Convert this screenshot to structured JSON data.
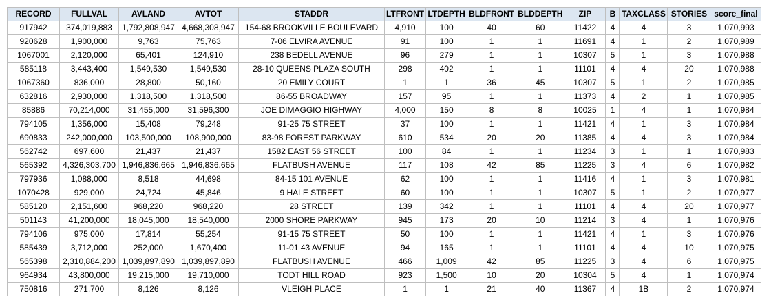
{
  "table": {
    "columns": [
      "RECORD",
      "FULLVAL",
      "AVLAND",
      "AVTOT",
      "STADDR",
      "LTFRONT",
      "LTDEPTH",
      "BLDFRONT",
      "BLDDEPTH",
      "ZIP",
      "B",
      "TAXCLASS",
      "STORIES",
      "score_final"
    ],
    "rows": [
      [
        "917942",
        "374,019,883",
        "1,792,808,947",
        "4,668,308,947",
        "154-68 BROOKVILLE BOULEVARD",
        "4,910",
        "100",
        "40",
        "60",
        "11422",
        "4",
        "4",
        "3",
        "1,070,993"
      ],
      [
        "920628",
        "1,900,000",
        "9,763",
        "75,763",
        "7-06 ELVIRA AVENUE",
        "91",
        "100",
        "1",
        "1",
        "11691",
        "4",
        "1",
        "2",
        "1,070,989"
      ],
      [
        "1067001",
        "2,120,000",
        "65,401",
        "124,910",
        "238 BEDELL AVENUE",
        "96",
        "279",
        "1",
        "1",
        "10307",
        "5",
        "1",
        "3",
        "1,070,988"
      ],
      [
        "585118",
        "3,443,400",
        "1,549,530",
        "1,549,530",
        "28-10 QUEENS PLAZA SOUTH",
        "298",
        "402",
        "1",
        "1",
        "11101",
        "4",
        "4",
        "20",
        "1,070,988"
      ],
      [
        "1067360",
        "836,000",
        "28,800",
        "50,160",
        "20 EMILY COURT",
        "1",
        "1",
        "36",
        "45",
        "10307",
        "5",
        "1",
        "2",
        "1,070,985"
      ],
      [
        "632816",
        "2,930,000",
        "1,318,500",
        "1,318,500",
        "86-55 BROADWAY",
        "157",
        "95",
        "1",
        "1",
        "11373",
        "4",
        "2",
        "1",
        "1,070,985"
      ],
      [
        "85886",
        "70,214,000",
        "31,455,000",
        "31,596,300",
        "JOE DIMAGGIO HIGHWAY",
        "4,000",
        "150",
        "8",
        "8",
        "10025",
        "1",
        "4",
        "1",
        "1,070,984"
      ],
      [
        "794105",
        "1,356,000",
        "15,408",
        "79,248",
        "91-25 75 STREET",
        "37",
        "100",
        "1",
        "1",
        "11421",
        "4",
        "1",
        "3",
        "1,070,984"
      ],
      [
        "690833",
        "242,000,000",
        "103,500,000",
        "108,900,000",
        "83-98 FOREST PARKWAY",
        "610",
        "534",
        "20",
        "20",
        "11385",
        "4",
        "4",
        "3",
        "1,070,984"
      ],
      [
        "562742",
        "697,600",
        "21,437",
        "21,437",
        "1582 EAST 56 STREET",
        "100",
        "84",
        "1",
        "1",
        "11234",
        "3",
        "1",
        "1",
        "1,070,983"
      ],
      [
        "565392",
        "4,326,303,700",
        "1,946,836,665",
        "1,946,836,665",
        "FLATBUSH AVENUE",
        "117",
        "108",
        "42",
        "85",
        "11225",
        "3",
        "4",
        "6",
        "1,070,982"
      ],
      [
        "797936",
        "1,088,000",
        "8,518",
        "44,698",
        "84-15 101 AVENUE",
        "62",
        "100",
        "1",
        "1",
        "11416",
        "4",
        "1",
        "3",
        "1,070,981"
      ],
      [
        "1070428",
        "929,000",
        "24,724",
        "45,846",
        "9 HALE STREET",
        "60",
        "100",
        "1",
        "1",
        "10307",
        "5",
        "1",
        "2",
        "1,070,977"
      ],
      [
        "585120",
        "2,151,600",
        "968,220",
        "968,220",
        "28 STREET",
        "139",
        "342",
        "1",
        "1",
        "11101",
        "4",
        "4",
        "20",
        "1,070,977"
      ],
      [
        "501143",
        "41,200,000",
        "18,045,000",
        "18,540,000",
        "2000 SHORE PARKWAY",
        "945",
        "173",
        "20",
        "10",
        "11214",
        "3",
        "4",
        "1",
        "1,070,976"
      ],
      [
        "794106",
        "975,000",
        "17,814",
        "55,254",
        "91-15 75 STREET",
        "50",
        "100",
        "1",
        "1",
        "11421",
        "4",
        "1",
        "3",
        "1,070,976"
      ],
      [
        "585439",
        "3,712,000",
        "252,000",
        "1,670,400",
        "11-01 43 AVENUE",
        "94",
        "165",
        "1",
        "1",
        "11101",
        "4",
        "4",
        "10",
        "1,070,975"
      ],
      [
        "565398",
        "2,310,884,200",
        "1,039,897,890",
        "1,039,897,890",
        "FLATBUSH AVENUE",
        "466",
        "1,009",
        "42",
        "85",
        "11225",
        "3",
        "4",
        "6",
        "1,070,975"
      ],
      [
        "964934",
        "43,800,000",
        "19,215,000",
        "19,710,000",
        "TODT HILL ROAD",
        "923",
        "1,500",
        "10",
        "20",
        "10304",
        "5",
        "4",
        "1",
        "1,070,974"
      ],
      [
        "750816",
        "271,700",
        "8,126",
        "8,126",
        "VLEIGH PLACE",
        "1",
        "1",
        "21",
        "40",
        "11367",
        "4",
        "1B",
        "2",
        "1,070,974"
      ]
    ]
  },
  "colors": {
    "header_bg": "#dce6f1",
    "border": "#bfbfbf",
    "text": "#000000"
  }
}
